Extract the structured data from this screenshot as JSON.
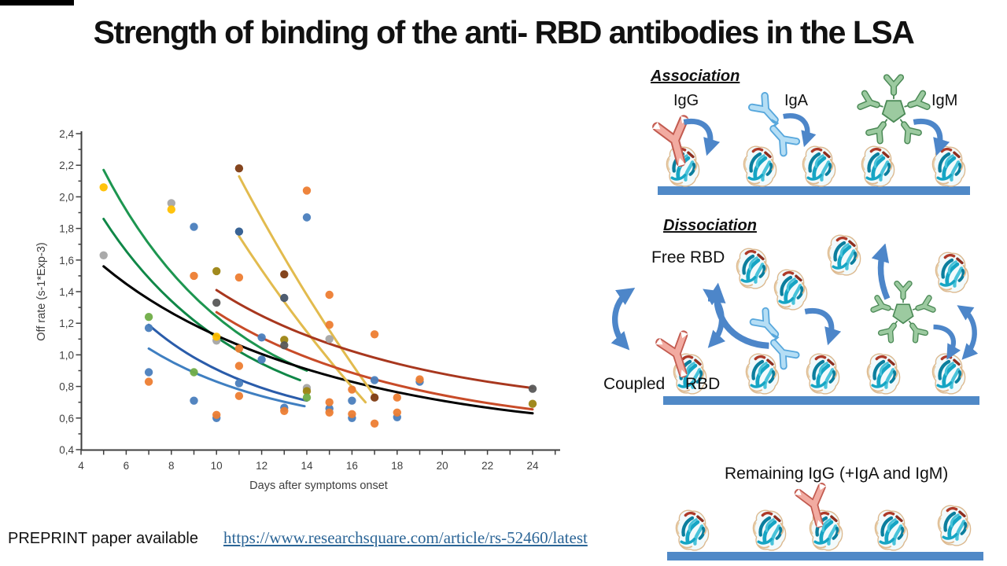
{
  "title": "Strength of binding of the anti- RBD antibodies in the LSA",
  "footer": {
    "text": "PREPRINT paper available",
    "link": "https://www.researchsquare.com/article/rs-52460/latest"
  },
  "diagram": {
    "association": {
      "header": "Association",
      "igg_label": "IgG",
      "iga_label": "IgA",
      "igm_label": "IgM"
    },
    "dissociation": {
      "header": "Dissociation",
      "free_label": "Free RBD",
      "coupled_label": "Coupled",
      "coupled_label2": "RBD"
    },
    "remaining": {
      "label": "Remaining IgG (+IgA and IgM)"
    },
    "colors": {
      "surface_bar": "#5089c7",
      "arrow": "#4d86c9",
      "igg": "#f2aba1",
      "iga": "#b5def5",
      "igm": "#9ccaa0",
      "rbd": "#16a5c4"
    }
  },
  "chart_data": {
    "type": "scatter",
    "title": "",
    "xlabel": "Days after symptoms onset",
    "ylabel": "Off rate (s-1*Exp-3)",
    "xlim": [
      4,
      25
    ],
    "ylim": [
      0.4,
      2.4
    ],
    "grid": false,
    "legend": "none",
    "x_tick_labels": [
      "4",
      "6",
      "8",
      "10",
      "12",
      "14",
      "16",
      "18",
      "20",
      "22",
      "24"
    ],
    "y_tick_labels": [
      "0,4",
      "0,6",
      "0,8",
      "1,0",
      "1,2",
      "1,4",
      "1,6",
      "1,8",
      "2,0",
      "2,2",
      "2,4"
    ],
    "series": [
      {
        "name": "blue",
        "color": "#4a7ebd",
        "points": [
          [
            7,
            1.17
          ],
          [
            7,
            0.89
          ],
          [
            9,
            1.81
          ],
          [
            9,
            0.71
          ],
          [
            10,
            0.6
          ],
          [
            11,
            0.82
          ],
          [
            12,
            1.11
          ],
          [
            12,
            0.97
          ],
          [
            13,
            0.665
          ],
          [
            14,
            1.87
          ],
          [
            15,
            0.66
          ],
          [
            16,
            0.71
          ],
          [
            16,
            0.6
          ],
          [
            17,
            0.84
          ],
          [
            18,
            0.605
          ],
          [
            19,
            0.83
          ]
        ]
      },
      {
        "name": "dark-blue",
        "color": "#2e5b8f",
        "points": [
          [
            11,
            1.78
          ]
        ]
      },
      {
        "name": "orange",
        "color": "#ed7d31",
        "points": [
          [
            7,
            0.83
          ],
          [
            9,
            1.5
          ],
          [
            10,
            0.62
          ],
          [
            11,
            1.49
          ],
          [
            11,
            1.04
          ],
          [
            11,
            0.93
          ],
          [
            11,
            0.74
          ],
          [
            13,
            0.645
          ],
          [
            14,
            2.04
          ],
          [
            15,
            1.38
          ],
          [
            15,
            1.19
          ],
          [
            15,
            0.7
          ],
          [
            15,
            0.635
          ],
          [
            16,
            0.78
          ],
          [
            16,
            0.625
          ],
          [
            17,
            1.13
          ],
          [
            17,
            0.565
          ],
          [
            18,
            0.73
          ],
          [
            18,
            0.635
          ],
          [
            19,
            0.845
          ]
        ]
      },
      {
        "name": "gray",
        "color": "#a5a5a5",
        "points": [
          [
            5,
            1.63
          ],
          [
            8,
            1.96
          ],
          [
            10,
            1.09
          ],
          [
            14,
            0.79
          ],
          [
            15,
            1.1
          ]
        ]
      },
      {
        "name": "yellow",
        "color": "#ffc000",
        "points": [
          [
            5,
            2.06
          ],
          [
            8,
            1.92
          ],
          [
            10,
            1.115
          ]
        ]
      },
      {
        "name": "dark-yellow",
        "color": "#9c8412",
        "points": [
          [
            10,
            1.53
          ],
          [
            13,
            1.095
          ],
          [
            14,
            0.77
          ],
          [
            24,
            0.69
          ]
        ]
      },
      {
        "name": "green",
        "color": "#70ad47",
        "points": [
          [
            7,
            1.24
          ],
          [
            9,
            0.89
          ],
          [
            14,
            0.73
          ]
        ]
      },
      {
        "name": "dark-brown",
        "color": "#7e3b12",
        "points": [
          [
            11,
            2.18
          ],
          [
            13,
            1.51
          ],
          [
            17,
            0.73
          ]
        ]
      },
      {
        "name": "dark-gray",
        "color": "#595959",
        "points": [
          [
            10,
            1.33
          ],
          [
            13,
            1.06
          ],
          [
            24,
            0.785
          ]
        ]
      },
      {
        "name": "dark-slate",
        "color": "#44546a",
        "points": [
          [
            13,
            1.36
          ]
        ]
      }
    ],
    "trend_lines": [
      {
        "name": "green-1",
        "color": "#1d9650",
        "from": [
          5,
          2.17
        ],
        "to": [
          14,
          0.9
        ],
        "bend": [
          0.38,
          0.25
        ]
      },
      {
        "name": "green-2",
        "color": "#0f8747",
        "from": [
          5,
          1.86
        ],
        "to": [
          13.7,
          0.84
        ],
        "bend": [
          0.38,
          0.28
        ]
      },
      {
        "name": "dark-blue",
        "color": "#2a5caa",
        "from": [
          7,
          1.19
        ],
        "to": [
          14,
          0.71
        ],
        "bend": [
          0.38,
          0.3
        ]
      },
      {
        "name": "medium-blue",
        "color": "#3f7fc1",
        "from": [
          7,
          1.04
        ],
        "to": [
          13.9,
          0.675
        ],
        "bend": [
          0.4,
          0.32
        ]
      },
      {
        "name": "black",
        "color": "#000000",
        "from": [
          5,
          1.56
        ],
        "to": [
          24,
          0.63
        ],
        "bend": [
          0.32,
          0.22
        ]
      },
      {
        "name": "yellow-1",
        "color": "#e2bb4e",
        "from": [
          11,
          2.13
        ],
        "to": [
          17,
          0.74
        ],
        "bend": [
          0.47,
          0.45
        ]
      },
      {
        "name": "yellow-2",
        "color": "#e2bb4e",
        "from": [
          11,
          1.75
        ],
        "to": [
          16.6,
          0.7
        ],
        "bend": [
          0.47,
          0.45
        ]
      },
      {
        "name": "red-1",
        "color": "#a8371e",
        "from": [
          10,
          1.41
        ],
        "to": [
          24,
          0.79
        ],
        "bend": [
          0.35,
          0.26
        ]
      },
      {
        "name": "red-2",
        "color": "#c84b28",
        "from": [
          10,
          1.27
        ],
        "to": [
          24,
          0.655
        ],
        "bend": [
          0.35,
          0.26
        ]
      }
    ]
  }
}
